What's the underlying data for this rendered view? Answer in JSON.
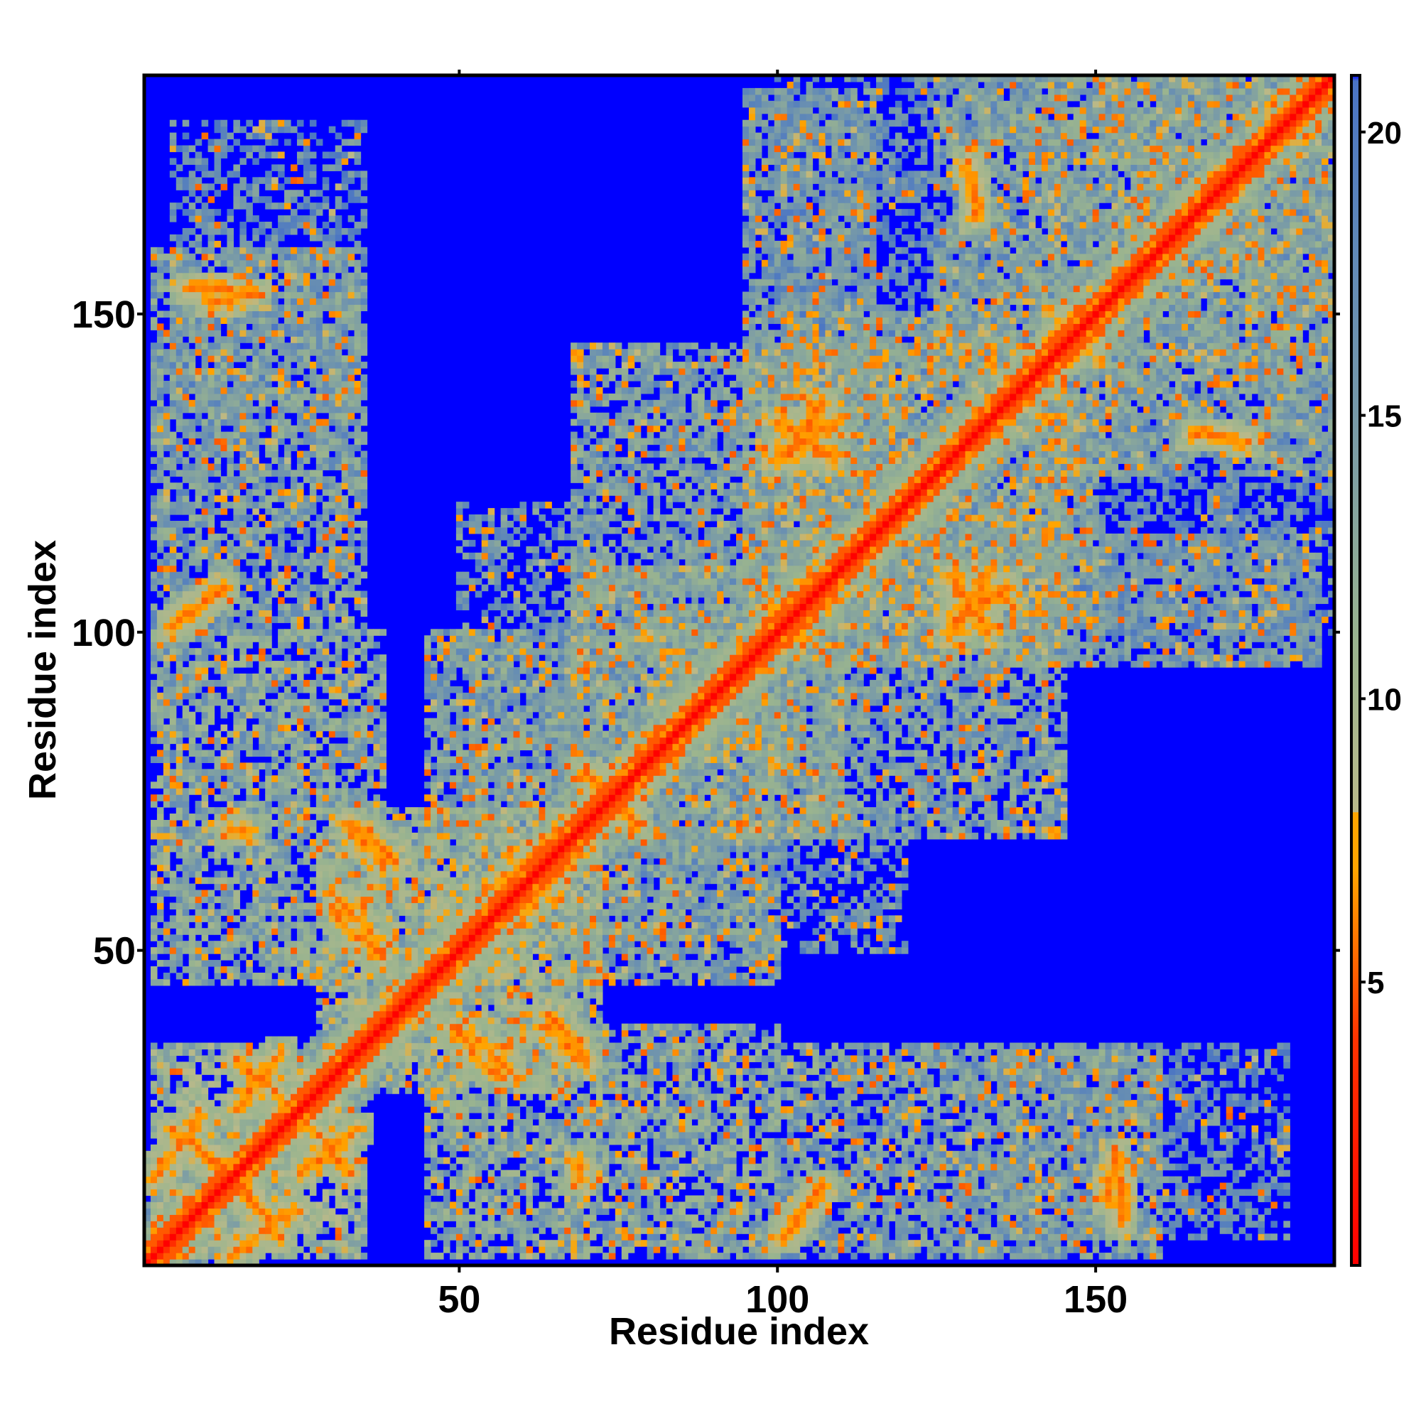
{
  "chart_data": {
    "type": "heatmap",
    "title": "",
    "xlabel": "Residue index",
    "ylabel": "Residue index",
    "xlim": [
      1,
      187
    ],
    "ylim": [
      1,
      187
    ],
    "x_ticks": [
      50,
      100,
      150
    ],
    "y_ticks": [
      50,
      100,
      150
    ],
    "x_tick_labels": [
      "50",
      "100",
      "150"
    ],
    "y_tick_labels": [
      "50",
      "100",
      "150"
    ],
    "grid": false,
    "matrix_size": 187,
    "colorbar": {
      "range": [
        0,
        21
      ],
      "ticks": [
        5,
        10,
        15,
        20
      ],
      "tick_labels": [
        "5",
        "10",
        "15",
        "20"
      ],
      "position": "right",
      "stops": [
        {
          "value": 0,
          "color": "#ff0000"
        },
        {
          "value": 4,
          "color": "#ff3300"
        },
        {
          "value": 7,
          "color": "#ffa500"
        },
        {
          "value": 8,
          "color": "#b9b98a"
        },
        {
          "value": 11,
          "color": "#9ab48f"
        },
        {
          "value": 14,
          "color": "#7f9fa3"
        },
        {
          "value": 18,
          "color": "#5f88b8"
        },
        {
          "value": 20.9,
          "color": "#4a74c4"
        },
        {
          "value": 21,
          "color": "#0000ff"
        }
      ]
    },
    "background_value": 21,
    "background_color": "#0000ff",
    "diagonal_band": {
      "center_value": 0,
      "near_value": 5,
      "halo_value": 13
    },
    "contact_segments": [
      {
        "from": [
          5,
          22
        ],
        "to": [
          17,
          12
        ],
        "kind": "antiparallel"
      },
      {
        "from": [
          14,
          2
        ],
        "to": [
          24,
          9
        ],
        "kind": "antiparallel"
      },
      {
        "from": [
          15,
          33
        ],
        "to": [
          24,
          25
        ],
        "kind": "antiparallel"
      },
      {
        "from": [
          25,
          15
        ],
        "to": [
          34,
          22
        ],
        "kind": "antiparallel"
      },
      {
        "from": [
          52,
          37
        ],
        "to": [
          58,
          31
        ],
        "kind": "antiparallel"
      },
      {
        "from": [
          64,
          38
        ],
        "to": [
          70,
          32
        ],
        "kind": "antiparallel"
      },
      {
        "from": [
          31,
          55
        ],
        "to": [
          38,
          49
        ],
        "kind": "antiparallel"
      },
      {
        "from": [
          33,
          70
        ],
        "to": [
          40,
          64
        ],
        "kind": "antiparallel"
      },
      {
        "from": [
          57,
          60
        ],
        "to": [
          65,
          67
        ],
        "kind": "parallel"
      },
      {
        "from": [
          70,
          78
        ],
        "to": [
          78,
          70
        ],
        "kind": "antiparallel"
      },
      {
        "from": [
          5,
          101
        ],
        "to": [
          13,
          107
        ],
        "kind": "parallel"
      },
      {
        "from": [
          101,
          5
        ],
        "to": [
          107,
          13
        ],
        "kind": "parallel"
      },
      {
        "from": [
          109,
          133
        ],
        "to": [
          100,
          127
        ],
        "kind": "parallel"
      },
      {
        "from": [
          127,
          109
        ],
        "to": [
          133,
          100
        ],
        "kind": "parallel"
      },
      {
        "from": [
          128,
          101
        ],
        "to": [
          136,
          107
        ],
        "kind": "parallel"
      },
      {
        "from": [
          101,
          128
        ],
        "to": [
          107,
          136
        ],
        "kind": "parallel"
      },
      {
        "from": [
          11,
          152
        ],
        "to": [
          18,
          153
        ],
        "kind": "parallel"
      },
      {
        "from": [
          152,
          11
        ],
        "to": [
          153,
          18
        ],
        "kind": "parallel"
      },
      {
        "from": [
          154,
          7
        ],
        "to": [
          154,
          14
        ],
        "kind": "parallel"
      },
      {
        "from": [
          165,
          131
        ],
        "to": [
          168,
          131
        ],
        "kind": "parallel"
      },
      {
        "from": [
          131,
          168
        ],
        "to": [
          130,
          174
        ],
        "kind": "parallel"
      },
      {
        "from": [
          14,
          69
        ],
        "to": [
          17,
          69
        ],
        "kind": "parallel"
      },
      {
        "from": [
          75,
          76
        ],
        "to": [
          80,
          80
        ],
        "kind": "parallel"
      },
      {
        "from": [
          143,
          146
        ],
        "to": [
          147,
          150
        ],
        "kind": "parallel"
      }
    ],
    "interaction_regions": [
      {
        "x": [
          2,
          35
        ],
        "y": [
          2,
          35
        ],
        "value": 12
      },
      {
        "x": [
          2,
          38
        ],
        "y": [
          45,
          100
        ],
        "value": 14
      },
      {
        "x": [
          45,
          100
        ],
        "y": [
          2,
          38
        ],
        "value": 14
      },
      {
        "x": [
          33,
          68
        ],
        "y": [
          28,
          72
        ],
        "value": 13
      },
      {
        "x": [
          28,
          72
        ],
        "y": [
          33,
          68
        ],
        "value": 13
      },
      {
        "x": [
          2,
          35
        ],
        "y": [
          100,
          160
        ],
        "value": 15
      },
      {
        "x": [
          100,
          160
        ],
        "y": [
          2,
          35
        ],
        "value": 15
      },
      {
        "x": [
          68,
          100
        ],
        "y": [
          45,
          110
        ],
        "value": 15
      },
      {
        "x": [
          45,
          110
        ],
        "y": [
          68,
          100
        ],
        "value": 15
      },
      {
        "x": [
          95,
          145
        ],
        "y": [
          68,
          150
        ],
        "value": 15
      },
      {
        "x": [
          68,
          150
        ],
        "y": [
          95,
          145
        ],
        "value": 15
      },
      {
        "x": [
          100,
          185
        ],
        "y": [
          95,
          115
        ],
        "value": 16
      },
      {
        "x": [
          95,
          115
        ],
        "y": [
          100,
          185
        ],
        "value": 16
      },
      {
        "x": [
          140,
          187
        ],
        "y": [
          125,
          187
        ],
        "value": 15
      },
      {
        "x": [
          125,
          187
        ],
        "y": [
          140,
          187
        ],
        "value": 15
      },
      {
        "x": [
          50,
          120
        ],
        "y": [
          50,
          70
        ],
        "value": 16
      },
      {
        "x": [
          5,
          35
        ],
        "y": [
          135,
          180
        ],
        "value": 17
      },
      {
        "x": [
          100,
          140
        ],
        "y": [
          140,
          187
        ],
        "value": 17
      }
    ]
  }
}
